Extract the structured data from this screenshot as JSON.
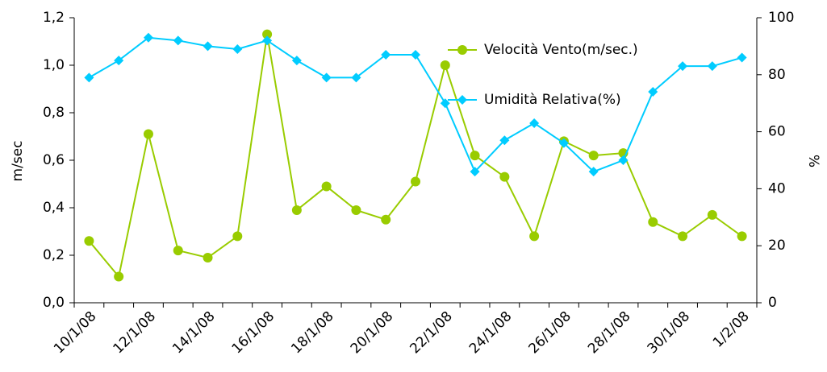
{
  "chart_data": {
    "type": "line",
    "categories": [
      "10/1/08",
      null,
      "12/1/08",
      null,
      "14/1/08",
      null,
      "16/1/08",
      null,
      "18/1/08",
      null,
      "20/1/08",
      null,
      "22/1/08",
      null,
      "24/1/08",
      null,
      "26/1/08",
      null,
      "28/1/08",
      null,
      "30/1/08",
      null,
      "1/2/08"
    ],
    "series": [
      {
        "name": "Velocità Vento(m/sec.)",
        "color": "#99cc00",
        "marker": "circle",
        "values": [
          0.26,
          0.11,
          0.71,
          0.22,
          0.19,
          0.28,
          1.13,
          0.39,
          0.49,
          0.39,
          0.35,
          0.51,
          1.0,
          0.62,
          0.53,
          0.28,
          0.68,
          0.62,
          0.63,
          0.34,
          0.28,
          0.37,
          0.28
        ]
      },
      {
        "name": "Umidità Relativa(%)",
        "color": "#00ccff",
        "marker": "diamond",
        "axis": "y2",
        "values": [
          79,
          85,
          93,
          92,
          90,
          89,
          92,
          85,
          79,
          79,
          87,
          87,
          70,
          46,
          57,
          63,
          56,
          46,
          50,
          74,
          83,
          83,
          86
        ]
      }
    ],
    "ylabel": "m/sec",
    "y2label": "%",
    "ylim": [
      0,
      1.2
    ],
    "yticks": [
      {
        "value": 0,
        "label": "0,0"
      },
      {
        "value": 0.2,
        "label": "0,2"
      },
      {
        "value": 0.4,
        "label": "0,4"
      },
      {
        "value": 0.6,
        "label": "0,6"
      },
      {
        "value": 0.8,
        "label": "0,8"
      },
      {
        "value": 1.0,
        "label": "1,0"
      },
      {
        "value": 1.2,
        "label": "1,2"
      }
    ],
    "y2lim": [
      0,
      100
    ],
    "y2ticks": [
      0,
      20,
      40,
      60,
      80,
      100
    ],
    "legend": "upper right",
    "grid": false
  }
}
